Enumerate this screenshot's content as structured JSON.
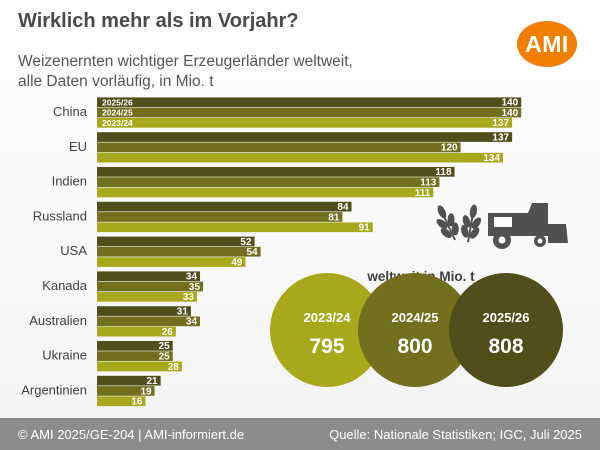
{
  "title": "Wirklich mehr als im Vorjahr?",
  "subtitle": "Weizenernten wichtiger Erzeugerländer weltweit, alle Daten vorläufig, in Mio. t",
  "logo": "AMI",
  "footer": {
    "left": "© AMI 2025/GE-204 | AMI-informiert.de",
    "right": "Quelle: Nationale Statistiken; IGC, Juli 2025"
  },
  "colors": {
    "s2526": "#504e1a",
    "s2425": "#72701f",
    "s2324": "#a8a81c",
    "logo": "#f07e00"
  },
  "chart_data": {
    "type": "bar",
    "orientation": "horizontal",
    "categories": [
      "China",
      "EU",
      "Indien",
      "Russland",
      "USA",
      "Kanada",
      "Australien",
      "Ukraine",
      "Argentinien"
    ],
    "series": [
      {
        "name": "2025/26",
        "values": [
          140,
          137,
          118,
          84,
          52,
          34,
          31,
          25,
          21
        ]
      },
      {
        "name": "2024/25",
        "values": [
          140,
          120,
          113,
          81,
          54,
          35,
          34,
          25,
          19
        ]
      },
      {
        "name": "2023/24",
        "values": [
          137,
          134,
          111,
          91,
          49,
          33,
          26,
          28,
          16
        ]
      }
    ],
    "unit": "Mio. t"
  },
  "world_totals": {
    "label": "weltweit in Mio. t",
    "items": [
      {
        "year": "2023/24",
        "value": "795"
      },
      {
        "year": "2024/25",
        "value": "800"
      },
      {
        "year": "2025/26",
        "value": "808"
      }
    ]
  },
  "icons": [
    "wheat-icon",
    "combine-harvester-icon"
  ]
}
